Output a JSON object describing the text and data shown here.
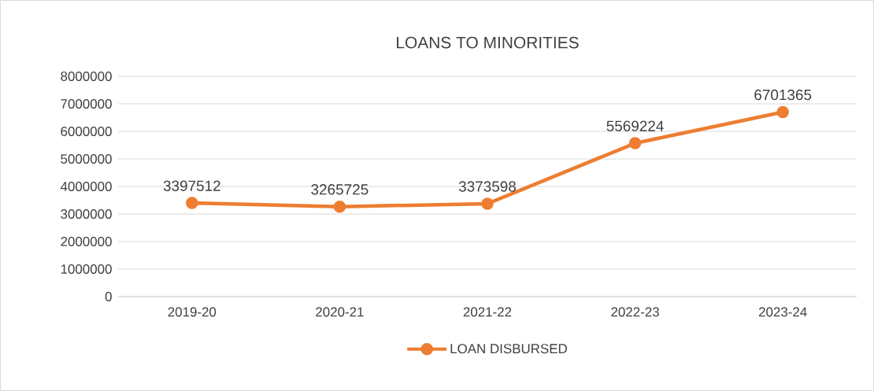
{
  "chart_data": {
    "type": "line",
    "title": "LOANS TO MINORITIES",
    "categories": [
      "2019-20",
      "2020-21",
      "2021-22",
      "2022-23",
      "2023-24"
    ],
    "series": [
      {
        "name": "LOAN DISBURSED",
        "color": "#ed7d31",
        "values": [
          3397512,
          3265725,
          3373598,
          5569224,
          6701365
        ]
      }
    ],
    "ylim": [
      0,
      8000000
    ],
    "yticks": [
      0,
      1000000,
      2000000,
      3000000,
      4000000,
      5000000,
      6000000,
      7000000,
      8000000
    ],
    "grid": "y",
    "legend": "bottom",
    "marker": "circle",
    "line_style": "solid",
    "data_labels": true
  }
}
